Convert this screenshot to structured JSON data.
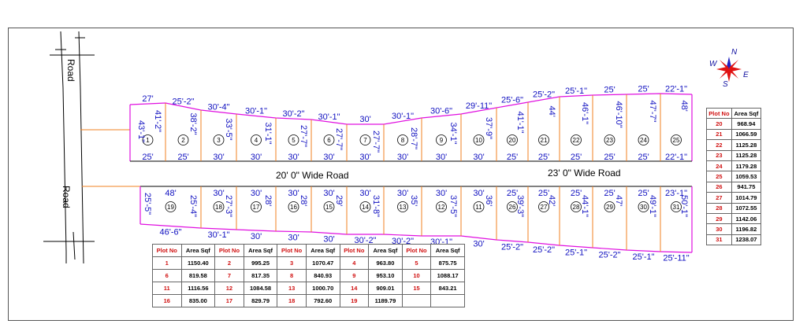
{
  "roads": {
    "main_road_top": "Road",
    "main_road_bottom": "Road",
    "road_20ft": "20' 0\" Wide Road",
    "road_23ft": "23' 0\" Wide Road"
  },
  "compass": {
    "n": "N",
    "s": "S",
    "e": "E",
    "w": "W"
  },
  "plots_top": [
    {
      "no": "1",
      "top": "27'",
      "bottom": "25'",
      "side": "41'-2\""
    },
    {
      "no": "2",
      "top": "25'-2\"",
      "bottom": "25'",
      "side": "38'-2\""
    },
    {
      "no": "3",
      "top": "30'-4\"",
      "bottom": "30'",
      "side": "33'-5\""
    },
    {
      "no": "4",
      "top": "30'-1\"",
      "bottom": "30'",
      "side": "31'-1\""
    },
    {
      "no": "5",
      "top": "30'-2\"",
      "bottom": "30'",
      "side": "27'-7\""
    },
    {
      "no": "6",
      "top": "30'-1\"",
      "bottom": "30'",
      "side": "27'-7\""
    },
    {
      "no": "7",
      "top": "30'",
      "bottom": "30'",
      "side": "27'-7\""
    },
    {
      "no": "8",
      "top": "30'-1\"",
      "bottom": "30'",
      "side": "28'-7\""
    },
    {
      "no": "9",
      "top": "30'-6\"",
      "bottom": "30'",
      "side": "34'-1\""
    },
    {
      "no": "10",
      "top": "29'-11\"",
      "bottom": "30'",
      "side": "37'-9\""
    },
    {
      "no": "20",
      "top": "25'-6\"",
      "bottom": "25'",
      "side": "41'-1\""
    },
    {
      "no": "21",
      "top": "25'-2\"",
      "bottom": "25'",
      "side": "44'"
    },
    {
      "no": "22",
      "top": "25'-1\"",
      "bottom": "25'",
      "side": "46'-1\""
    },
    {
      "no": "23",
      "top": "25'",
      "bottom": "25'",
      "side": "46'-10\""
    },
    {
      "no": "24",
      "top": "25'",
      "bottom": "25'",
      "side": "47'-7\""
    },
    {
      "no": "25",
      "top": "22'-1\"",
      "bottom": "22'-1\"",
      "side": "48'"
    }
  ],
  "plot1_left_side": "43'-1\"",
  "plots_bottom": [
    {
      "no": "19",
      "top": "48'",
      "bottom": "46'-6\"",
      "side": "25'-4\""
    },
    {
      "no": "18",
      "top": "30'",
      "bottom": "30'-1\"",
      "side": "27'-3\""
    },
    {
      "no": "17",
      "top": "30'",
      "bottom": "30'",
      "side": "28'"
    },
    {
      "no": "16",
      "top": "30'",
      "bottom": "30'",
      "side": "28'"
    },
    {
      "no": "15",
      "top": "30'",
      "bottom": "30'",
      "side": "29'"
    },
    {
      "no": "14",
      "top": "30'",
      "bottom": "30'-2\"",
      "side": "31'-8\""
    },
    {
      "no": "13",
      "top": "30'",
      "bottom": "30'-2\"",
      "side": "35'"
    },
    {
      "no": "12",
      "top": "30'",
      "bottom": "30'-1\"",
      "side": "37'-5\""
    },
    {
      "no": "11",
      "top": "30'",
      "bottom": "30'",
      "side": "36'"
    },
    {
      "no": "26",
      "top": "25'",
      "bottom": "25'-2\"",
      "side": "39'-3\""
    },
    {
      "no": "27",
      "top": "25'",
      "bottom": "25'-2\"",
      "side": "42'"
    },
    {
      "no": "28",
      "top": "25'",
      "bottom": "25'-1\"",
      "side": "44'-1\""
    },
    {
      "no": "29",
      "top": "25'",
      "bottom": "25'-2\"",
      "side": "47'"
    },
    {
      "no": "30",
      "top": "25'",
      "bottom": "25'-1\"",
      "side": "49'-1\""
    },
    {
      "no": "31",
      "top": "23'-1\"",
      "bottom": "25'-11\"",
      "side": "50'-1\""
    }
  ],
  "plot19_left_side": "25'-5\"",
  "table_bottom": {
    "header": [
      "Plot No",
      "Area Sqf",
      "Plot No",
      "Area Sqf",
      "Plot No",
      "Area Sqf",
      "Plot No",
      "Area Sqf",
      "Plot No",
      "Area Sqf"
    ],
    "rows": [
      [
        "1",
        "1150.40",
        "2",
        "995.25",
        "3",
        "1070.47",
        "4",
        "963.80",
        "5",
        "875.75"
      ],
      [
        "6",
        "819.58",
        "7",
        "817.35",
        "8",
        "840.93",
        "9",
        "953.10",
        "10",
        "1088.17"
      ],
      [
        "11",
        "1116.56",
        "12",
        "1084.58",
        "13",
        "1000.70",
        "14",
        "909.01",
        "15",
        "843.21"
      ],
      [
        "16",
        "835.00",
        "17",
        "829.79",
        "18",
        "792.60",
        "19",
        "1189.79",
        "",
        ""
      ]
    ]
  },
  "table_right": {
    "header": [
      "Plot No",
      "Area Sqf"
    ],
    "rows": [
      [
        "20",
        "968.94"
      ],
      [
        "21",
        "1066.59"
      ],
      [
        "22",
        "1125.28"
      ],
      [
        "23",
        "1125.28"
      ],
      [
        "24",
        "1179.28"
      ],
      [
        "25",
        "1059.53"
      ],
      [
        "26",
        "941.75"
      ],
      [
        "27",
        "1014.79"
      ],
      [
        "28",
        "1072.55"
      ],
      [
        "29",
        "1142.06"
      ],
      [
        "30",
        "1196.82"
      ],
      [
        "31",
        "1238.07"
      ]
    ]
  }
}
